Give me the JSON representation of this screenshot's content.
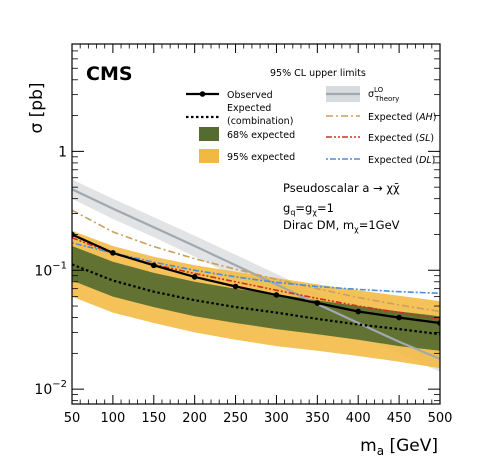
{
  "chart_data": {
    "type": "line",
    "experiment": "CMS",
    "title": "95% CL upper limits",
    "xlabel": "m",
    "xlabel_sub": "a",
    "xlabel_unit": " [GeV]",
    "ylabel": "σ [pb]",
    "xlim": [
      50,
      500
    ],
    "ylim": [
      0.0075,
      8
    ],
    "yscale": "log",
    "x_ticks": [
      50,
      100,
      150,
      200,
      250,
      300,
      350,
      400,
      450,
      500
    ],
    "y_ticks": [
      {
        "value": 0.01,
        "label": "10",
        "exp": "−2"
      },
      {
        "value": 0.1,
        "label": "10",
        "exp": "−1"
      },
      {
        "value": 1,
        "label": "1",
        "exp": ""
      }
    ],
    "annotations": {
      "process": "Pseudoscalar a → χχ̄",
      "couplings": "g",
      "couplings_q": "q",
      "couplings_eq": "=g",
      "couplings_chi": "χ",
      "couplings_val": "=1",
      "dm": "Dirac DM, m",
      "dm_chi": "χ",
      "dm_val": "=1GeV"
    },
    "x": [
      50,
      100,
      150,
      200,
      250,
      300,
      350,
      400,
      450,
      500
    ],
    "series": [
      {
        "name": "Observed",
        "kind": "observed",
        "color": "#000000",
        "values": [
          0.2,
          0.14,
          0.11,
          0.088,
          0.073,
          0.062,
          0.053,
          0.045,
          0.04,
          0.036
        ]
      },
      {
        "name": "Expected",
        "name2": "(combination)",
        "kind": "expected",
        "color": "#000000",
        "values": [
          0.112,
          0.082,
          0.066,
          0.056,
          0.049,
          0.044,
          0.039,
          0.035,
          0.032,
          0.029
        ]
      },
      {
        "name": "Expected (AH)",
        "kind": "AH",
        "color": "#c8a060",
        "values": [
          0.32,
          0.21,
          0.158,
          0.125,
          0.102,
          0.084,
          0.07,
          0.059,
          0.051,
          0.045
        ]
      },
      {
        "name": "Expected (SL)",
        "kind": "SL",
        "color": "#d03020",
        "values": [
          0.188,
          0.138,
          0.112,
          0.094,
          0.08,
          0.068,
          0.058,
          0.05,
          0.044,
          0.039
        ]
      },
      {
        "name": "Expected (DL)",
        "kind": "DL",
        "color": "#4a8fd8",
        "values": [
          0.17,
          0.14,
          0.117,
          0.1,
          0.088,
          0.079,
          0.073,
          0.069,
          0.066,
          0.064
        ]
      },
      {
        "name": "σ",
        "name_sup": "LO",
        "name_sub": "Theory",
        "kind": "theory",
        "color": "#a0a8b0",
        "values": [
          0.48,
          0.33,
          0.23,
          0.16,
          0.11,
          0.076,
          0.052,
          0.036,
          0.025,
          0.018
        ],
        "band_low": [
          0.4,
          0.27,
          0.19,
          0.13,
          0.088,
          0.06,
          0.041,
          0.029,
          0.02,
          0.014
        ],
        "band_high": [
          0.58,
          0.4,
          0.28,
          0.195,
          0.135,
          0.093,
          0.064,
          0.044,
          0.031,
          0.023
        ]
      }
    ],
    "bands": [
      {
        "name": "68% expected",
        "color": "#556b2f",
        "low": [
          0.082,
          0.06,
          0.049,
          0.041,
          0.036,
          0.032,
          0.029,
          0.026,
          0.023,
          0.021
        ],
        "high": [
          0.16,
          0.118,
          0.095,
          0.08,
          0.07,
          0.063,
          0.056,
          0.05,
          0.045,
          0.041
        ]
      },
      {
        "name": "95% expected",
        "color": "#f2b942",
        "low": [
          0.06,
          0.044,
          0.036,
          0.03,
          0.026,
          0.023,
          0.021,
          0.019,
          0.017,
          0.015
        ],
        "high": [
          0.215,
          0.16,
          0.13,
          0.11,
          0.097,
          0.086,
          0.076,
          0.068,
          0.061,
          0.055
        ]
      }
    ],
    "legend_position": "top"
  }
}
